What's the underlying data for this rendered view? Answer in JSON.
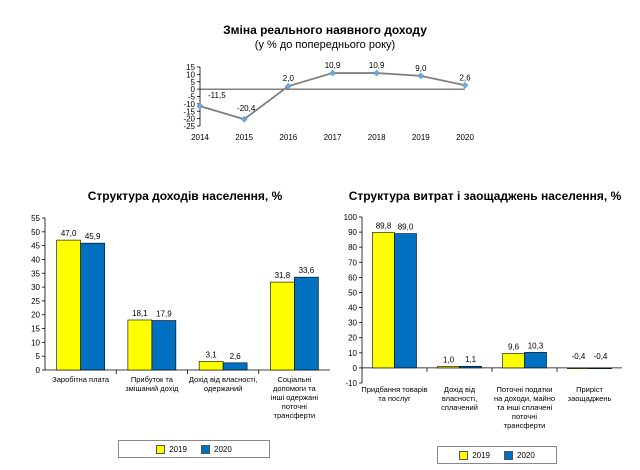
{
  "colors": {
    "line": "#808080",
    "marker": "#6fa8dc",
    "series_2019": "#ffff00",
    "series_2020": "#0070c0"
  },
  "chart_data": [
    {
      "type": "line",
      "title": "Зміна реального наявного доходу",
      "subtitle": "(у % до попереднього року)",
      "x": [
        "2014",
        "2015",
        "2016",
        "2017",
        "2018",
        "2019",
        "2020"
      ],
      "values": [
        -11.5,
        -20.4,
        2.0,
        10.9,
        10.9,
        9.0,
        2.6
      ],
      "labels": [
        "-11,5",
        "-20,4",
        "2,0",
        "10,9",
        "10,9",
        "9,0",
        "2,6"
      ],
      "yticks": [
        "15",
        "10",
        "5",
        "0",
        "-5",
        "-10",
        "-15",
        "-20",
        "-25"
      ],
      "ylim": [
        -25,
        15
      ],
      "grid": false
    },
    {
      "type": "bar",
      "title": "Структура доходів населення, %",
      "categories": [
        [
          "Заробітна плата"
        ],
        [
          "Прибуток та",
          "змішаний дохід"
        ],
        [
          "Дохід від власності,",
          "одержаний"
        ],
        [
          "Соціальні",
          "допомоги та",
          "інші одержані",
          "поточні",
          "трансферти"
        ]
      ],
      "series": [
        {
          "name": "2019",
          "values": [
            47.0,
            18.1,
            3.1,
            31.8
          ],
          "labels": [
            "47,0",
            "18,1",
            "3,1",
            "31,8"
          ]
        },
        {
          "name": "2020",
          "values": [
            45.9,
            17.9,
            2.6,
            33.6
          ],
          "labels": [
            "45,9",
            "17,9",
            "2,6",
            "33,6"
          ]
        }
      ],
      "yticks": [
        "55",
        "50",
        "45",
        "40",
        "35",
        "30",
        "25",
        "20",
        "15",
        "10",
        "5",
        "0"
      ],
      "ylim": [
        0,
        55
      ],
      "grid": false,
      "legend": "bottom"
    },
    {
      "type": "bar",
      "title": "Структура витрат і заощаджень населення, %",
      "categories": [
        [
          "Придбання товарів",
          "та послуг"
        ],
        [
          "Дохід від",
          "власності,",
          "сплачений"
        ],
        [
          "Поточні податки",
          "на доходи, майно",
          "та інші сплачені",
          "поточні",
          "трансферти"
        ],
        [
          "Приріст",
          "заощаджень"
        ]
      ],
      "series": [
        {
          "name": "2019",
          "values": [
            89.8,
            1.0,
            9.6,
            -0.4
          ],
          "labels": [
            "89,8",
            "1,0",
            "9,6",
            "-0,4"
          ]
        },
        {
          "name": "2020",
          "values": [
            89.0,
            1.1,
            10.3,
            -0.4
          ],
          "labels": [
            "89,0",
            "1,1",
            "10,3",
            "-0,4"
          ]
        }
      ],
      "yticks": [
        "100",
        "90",
        "80",
        "70",
        "60",
        "50",
        "40",
        "30",
        "20",
        "10",
        "0",
        "-10"
      ],
      "ylim": [
        -10,
        100
      ],
      "grid": false,
      "legend": "bottom"
    }
  ]
}
